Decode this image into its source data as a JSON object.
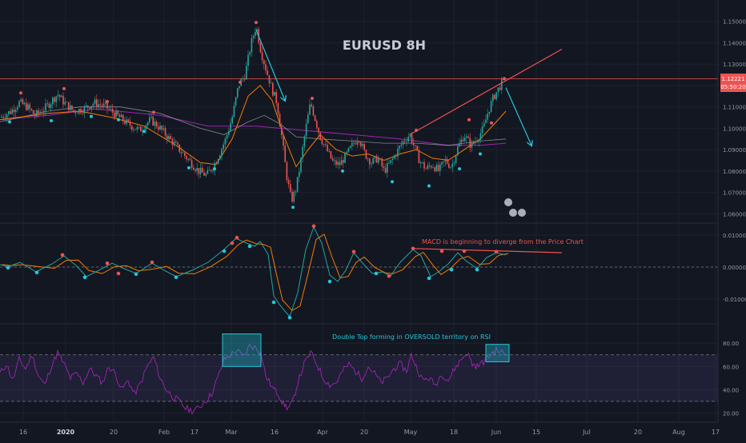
{
  "chart_data": [
    {
      "type": "candlestick",
      "title": "EURUSD 8H",
      "y_axis": {
        "ticks": [
          "1.15000",
          "1.14000",
          "1.13000",
          "1.12000",
          "1.11000",
          "1.10000",
          "1.09000",
          "1.08000",
          "1.07000",
          "1.06000"
        ],
        "ylim": [
          1.056,
          1.16
        ]
      },
      "x_axis": {
        "ticks": [
          "16",
          "2020",
          "20",
          "Feb",
          "17",
          "Mar",
          "16",
          "Apr",
          "20",
          "May",
          "18",
          "Jun",
          "15",
          "Jul",
          "20",
          "Aug",
          "17"
        ]
      },
      "price_label": {
        "value": "1.12221",
        "countdown": "05:50:20"
      },
      "close_path": [
        [
          0,
          1.105
        ],
        [
          14,
          1.108
        ],
        [
          24,
          1.112
        ],
        [
          34,
          1.11
        ],
        [
          44,
          1.106
        ],
        [
          58,
          1.11
        ],
        [
          72,
          1.116
        ],
        [
          80,
          1.112
        ],
        [
          92,
          1.108
        ],
        [
          104,
          1.109
        ],
        [
          118,
          1.112
        ],
        [
          132,
          1.11
        ],
        [
          146,
          1.106
        ],
        [
          160,
          1.102
        ],
        [
          174,
          1.099
        ],
        [
          188,
          1.104
        ],
        [
          200,
          1.1
        ],
        [
          212,
          1.095
        ],
        [
          224,
          1.09
        ],
        [
          236,
          1.085
        ],
        [
          248,
          1.08
        ],
        [
          258,
          1.078
        ],
        [
          266,
          1.082
        ],
        [
          274,
          1.088
        ],
        [
          282,
          1.095
        ],
        [
          290,
          1.105
        ],
        [
          298,
          1.12
        ],
        [
          306,
          1.125
        ],
        [
          314,
          1.14
        ],
        [
          320,
          1.148
        ],
        [
          326,
          1.136
        ],
        [
          332,
          1.128
        ],
        [
          340,
          1.118
        ],
        [
          346,
          1.112
        ],
        [
          352,
          1.096
        ],
        [
          358,
          1.078
        ],
        [
          364,
          1.066
        ],
        [
          370,
          1.072
        ],
        [
          376,
          1.085
        ],
        [
          382,
          1.1
        ],
        [
          388,
          1.112
        ],
        [
          394,
          1.104
        ],
        [
          400,
          1.096
        ],
        [
          408,
          1.09
        ],
        [
          416,
          1.084
        ],
        [
          424,
          1.083
        ],
        [
          432,
          1.087
        ],
        [
          440,
          1.092
        ],
        [
          448,
          1.096
        ],
        [
          456,
          1.088
        ],
        [
          464,
          1.084
        ],
        [
          472,
          1.086
        ],
        [
          480,
          1.08
        ],
        [
          488,
          1.084
        ],
        [
          496,
          1.089
        ],
        [
          504,
          1.094
        ],
        [
          512,
          1.097
        ],
        [
          518,
          1.091
        ],
        [
          524,
          1.085
        ],
        [
          532,
          1.081
        ],
        [
          540,
          1.083
        ],
        [
          548,
          1.08
        ],
        [
          556,
          1.085
        ],
        [
          564,
          1.082
        ],
        [
          572,
          1.091
        ],
        [
          580,
          1.097
        ],
        [
          588,
          1.092
        ],
        [
          596,
          1.095
        ],
        [
          604,
          1.1
        ],
        [
          610,
          1.108
        ],
        [
          616,
          1.114
        ],
        [
          622,
          1.118
        ],
        [
          628,
          1.122
        ]
      ],
      "fast_ma": [
        [
          0,
          1.104
        ],
        [
          60,
          1.107
        ],
        [
          100,
          1.108
        ],
        [
          140,
          1.105
        ],
        [
          180,
          1.101
        ],
        [
          220,
          1.092
        ],
        [
          250,
          1.084
        ],
        [
          270,
          1.083
        ],
        [
          290,
          1.095
        ],
        [
          310,
          1.115
        ],
        [
          325,
          1.12
        ],
        [
          340,
          1.113
        ],
        [
          355,
          1.096
        ],
        [
          370,
          1.082
        ],
        [
          385,
          1.09
        ],
        [
          400,
          1.097
        ],
        [
          420,
          1.09
        ],
        [
          440,
          1.087
        ],
        [
          460,
          1.088
        ],
        [
          480,
          1.085
        ],
        [
          500,
          1.088
        ],
        [
          520,
          1.09
        ],
        [
          540,
          1.086
        ],
        [
          560,
          1.085
        ],
        [
          580,
          1.09
        ],
        [
          600,
          1.095
        ],
        [
          620,
          1.103
        ],
        [
          632,
          1.108
        ]
      ],
      "slow_ma": [
        [
          0,
          1.103
        ],
        [
          60,
          1.108
        ],
        [
          100,
          1.11
        ],
        [
          150,
          1.11
        ],
        [
          200,
          1.107
        ],
        [
          250,
          1.1
        ],
        [
          280,
          1.097
        ],
        [
          310,
          1.103
        ],
        [
          330,
          1.106
        ],
        [
          350,
          1.102
        ],
        [
          370,
          1.096
        ],
        [
          400,
          1.095
        ],
        [
          440,
          1.094
        ],
        [
          480,
          1.093
        ],
        [
          520,
          1.093
        ],
        [
          560,
          1.092
        ],
        [
          600,
          1.094
        ],
        [
          632,
          1.095
        ]
      ],
      "slow_ma2": [
        [
          0,
          1.104
        ],
        [
          60,
          1.106
        ],
        [
          120,
          1.109
        ],
        [
          200,
          1.106
        ],
        [
          260,
          1.101
        ],
        [
          320,
          1.101
        ],
        [
          380,
          1.099
        ],
        [
          440,
          1.097
        ],
        [
          500,
          1.095
        ],
        [
          560,
          1.092
        ],
        [
          600,
          1.092
        ],
        [
          632,
          1.093
        ]
      ],
      "trendlines": [
        {
          "color": "#26c6da",
          "from": [
            320,
            1.146
          ],
          "to": [
            356,
            1.113
          ]
        },
        {
          "color": "#26c6da",
          "from": [
            632,
            1.119
          ],
          "to": [
            664,
            1.092
          ]
        },
        {
          "color": "#ef5350",
          "from": [
            512,
            1.097
          ],
          "to": [
            702,
            1.137
          ]
        }
      ],
      "horizontal_line": {
        "value": 1.1232,
        "color": "#ef5350"
      },
      "markers": {
        "red": [
          [
            26,
            1.1165
          ],
          [
            80,
            1.1185
          ],
          [
            134,
            1.1125
          ],
          [
            192,
            1.1075
          ],
          [
            300,
            1.1215
          ],
          [
            320,
            1.1495
          ],
          [
            390,
            1.114
          ],
          [
            520,
            1.099
          ],
          [
            586,
            1.104
          ],
          [
            614,
            1.1025
          ],
          [
            630,
            1.1232
          ]
        ],
        "teal": [
          [
            12,
            1.103
          ],
          [
            64,
            1.1035
          ],
          [
            114,
            1.1055
          ],
          [
            148,
            1.104
          ],
          [
            180,
            1.0985
          ],
          [
            236,
            1.0815
          ],
          [
            268,
            1.081
          ],
          [
            366,
            1.063
          ],
          [
            428,
            1.08
          ],
          [
            490,
            1.075
          ],
          [
            536,
            1.073
          ],
          [
            574,
            1.081
          ],
          [
            600,
            1.088
          ]
        ]
      }
    },
    {
      "type": "line",
      "name": "MACD",
      "annotation": "MACD is beginning to diverge from the Price Chart",
      "y_axis": {
        "ticks": [
          "0.01000",
          "0.00000",
          "-0.01000"
        ],
        "ylim": [
          -0.0175,
          0.0135
        ]
      },
      "macd_line": [
        [
          0,
          0.0008
        ],
        [
          10,
          0.0001
        ],
        [
          25,
          0.0015
        ],
        [
          45,
          -0.0015
        ],
        [
          65,
          0.001
        ],
        [
          80,
          0.0035
        ],
        [
          95,
          0.0005
        ],
        [
          108,
          -0.003
        ],
        [
          125,
          -0.0008
        ],
        [
          140,
          0.0012
        ],
        [
          155,
          -0.0005
        ],
        [
          170,
          -0.002
        ],
        [
          190,
          0.0012
        ],
        [
          205,
          -0.001
        ],
        [
          220,
          -0.003
        ],
        [
          240,
          -0.001
        ],
        [
          260,
          0.0015
        ],
        [
          280,
          0.0055
        ],
        [
          295,
          0.009
        ],
        [
          305,
          0.0078
        ],
        [
          318,
          0.0065
        ],
        [
          325,
          0.008
        ],
        [
          335,
          0.004
        ],
        [
          342,
          -0.009
        ],
        [
          350,
          -0.012
        ],
        [
          362,
          -0.0155
        ],
        [
          372,
          -0.008
        ],
        [
          382,
          0.0055
        ],
        [
          392,
          0.0125
        ],
        [
          402,
          0.0075
        ],
        [
          412,
          -0.0025
        ],
        [
          422,
          -0.0045
        ],
        [
          432,
          -0.001
        ],
        [
          442,
          0.0045
        ],
        [
          452,
          0.0015
        ],
        [
          465,
          -0.002
        ],
        [
          478,
          -0.0015
        ],
        [
          488,
          -0.0028
        ],
        [
          500,
          0.0015
        ],
        [
          516,
          0.0055
        ],
        [
          526,
          0.0035
        ],
        [
          538,
          -0.003
        ],
        [
          548,
          -0.0015
        ],
        [
          560,
          0.001
        ],
        [
          572,
          0.0045
        ],
        [
          582,
          0.002
        ],
        [
          596,
          -0.0005
        ],
        [
          608,
          0.003
        ],
        [
          620,
          0.0045
        ],
        [
          632,
          0.0038
        ]
      ],
      "trendline": {
        "from": [
          516,
          0.0058
        ],
        "to": [
          702,
          0.0045
        ]
      },
      "markers": {
        "red": [
          [
            78,
            0.0038
          ],
          [
            134,
            0.0012
          ],
          [
            148,
            -0.002
          ],
          [
            190,
            0.0015
          ],
          [
            290,
            0.0075
          ],
          [
            296,
            0.0092
          ],
          [
            392,
            0.0128
          ],
          [
            442,
            0.0048
          ],
          [
            486,
            -0.0028
          ],
          [
            516,
            0.0058
          ],
          [
            552,
            0.005
          ],
          [
            580,
            0.005
          ],
          [
            620,
            0.0048
          ]
        ],
        "teal": [
          [
            10,
            -0.0002
          ],
          [
            46,
            -0.0017
          ],
          [
            106,
            -0.0032
          ],
          [
            170,
            -0.0022
          ],
          [
            220,
            -0.0032
          ],
          [
            280,
            0.005
          ],
          [
            312,
            0.0065
          ],
          [
            342,
            -0.011
          ],
          [
            362,
            -0.0158
          ],
          [
            412,
            -0.0045
          ],
          [
            470,
            -0.002
          ],
          [
            536,
            -0.0035
          ],
          [
            564,
            -0.0008
          ],
          [
            596,
            -0.0008
          ]
        ]
      }
    },
    {
      "type": "line",
      "name": "RSI",
      "annotation": "Double Top forming in OVERSOLD territory on RSI",
      "y_axis": {
        "ticks": [
          "80.00",
          "60.00",
          "40.00",
          "20.00"
        ],
        "ylim": [
          12,
          96
        ]
      },
      "upper_band": 70,
      "lower_band": 30,
      "boxes": [
        {
          "x0": 278,
          "x1": 326,
          "y0": 88,
          "y1": 60
        },
        {
          "x0": 607,
          "x1": 636,
          "y0": 79,
          "y1": 64
        }
      ],
      "rsi_line": [
        [
          0,
          54
        ],
        [
          8,
          62
        ],
        [
          16,
          48
        ],
        [
          24,
          66
        ],
        [
          32,
          58
        ],
        [
          40,
          70
        ],
        [
          48,
          52
        ],
        [
          56,
          44
        ],
        [
          64,
          60
        ],
        [
          72,
          72
        ],
        [
          80,
          62
        ],
        [
          88,
          50
        ],
        [
          96,
          54
        ],
        [
          104,
          46
        ],
        [
          112,
          58
        ],
        [
          120,
          52
        ],
        [
          128,
          46
        ],
        [
          136,
          60
        ],
        [
          144,
          54
        ],
        [
          152,
          40
        ],
        [
          160,
          48
        ],
        [
          168,
          36
        ],
        [
          176,
          46
        ],
        [
          184,
          60
        ],
        [
          192,
          68
        ],
        [
          200,
          50
        ],
        [
          208,
          40
        ],
        [
          216,
          34
        ],
        [
          224,
          30
        ],
        [
          232,
          24
        ],
        [
          240,
          22
        ],
        [
          248,
          24
        ],
        [
          256,
          30
        ],
        [
          264,
          36
        ],
        [
          272,
          50
        ],
        [
          280,
          66
        ],
        [
          288,
          70
        ],
        [
          296,
          74
        ],
        [
          304,
          68
        ],
        [
          312,
          78
        ],
        [
          320,
          76
        ],
        [
          326,
          72
        ],
        [
          332,
          52
        ],
        [
          340,
          42
        ],
        [
          348,
          36
        ],
        [
          354,
          28
        ],
        [
          360,
          24
        ],
        [
          366,
          30
        ],
        [
          372,
          46
        ],
        [
          380,
          62
        ],
        [
          388,
          72
        ],
        [
          396,
          62
        ],
        [
          404,
          50
        ],
        [
          412,
          44
        ],
        [
          420,
          46
        ],
        [
          428,
          56
        ],
        [
          436,
          62
        ],
        [
          444,
          56
        ],
        [
          452,
          50
        ],
        [
          460,
          60
        ],
        [
          468,
          54
        ],
        [
          476,
          46
        ],
        [
          484,
          50
        ],
        [
          492,
          58
        ],
        [
          500,
          62
        ],
        [
          508,
          56
        ],
        [
          514,
          70
        ],
        [
          520,
          60
        ],
        [
          528,
          48
        ],
        [
          536,
          50
        ],
        [
          544,
          44
        ],
        [
          552,
          54
        ],
        [
          560,
          48
        ],
        [
          568,
          58
        ],
        [
          576,
          66
        ],
        [
          584,
          72
        ],
        [
          590,
          62
        ],
        [
          596,
          60
        ],
        [
          604,
          64
        ],
        [
          612,
          70
        ],
        [
          620,
          74
        ],
        [
          628,
          72
        ],
        [
          632,
          70
        ]
      ]
    }
  ]
}
